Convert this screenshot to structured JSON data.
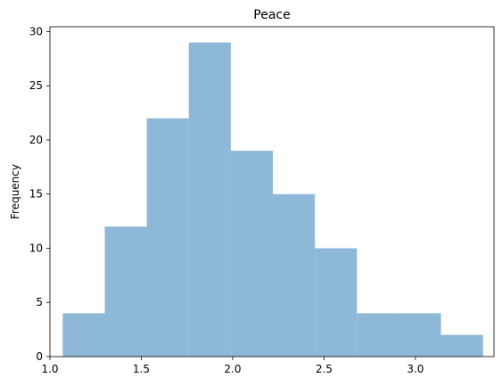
{
  "chart_data": {
    "type": "bar",
    "title": "Peace",
    "xlabel": "",
    "ylabel": "Frequency",
    "bins": [
      {
        "x0": 1.07,
        "x1": 1.3,
        "count": 4
      },
      {
        "x0": 1.3,
        "x1": 1.53,
        "count": 12
      },
      {
        "x0": 1.53,
        "x1": 1.76,
        "count": 22
      },
      {
        "x0": 1.76,
        "x1": 1.99,
        "count": 29
      },
      {
        "x0": 1.99,
        "x1": 2.22,
        "count": 19
      },
      {
        "x0": 2.22,
        "x1": 2.45,
        "count": 15
      },
      {
        "x0": 2.45,
        "x1": 2.68,
        "count": 10
      },
      {
        "x0": 2.68,
        "x1": 2.91,
        "count": 4
      },
      {
        "x0": 2.91,
        "x1": 3.14,
        "count": 4
      },
      {
        "x0": 3.14,
        "x1": 3.37,
        "count": 2
      }
    ],
    "xlim": [
      1.0,
      3.43
    ],
    "ylim": [
      0,
      30.45
    ],
    "xticks": [
      1.0,
      1.5,
      2.0,
      2.5,
      3.0
    ],
    "xtick_labels": [
      "1.0",
      "1.5",
      "2.0",
      "2.5",
      "3.0"
    ],
    "yticks": [
      0,
      5,
      10,
      15,
      20,
      25,
      30
    ],
    "ytick_labels": [
      "0",
      "5",
      "10",
      "15",
      "20",
      "25",
      "30"
    ],
    "bar_color": "#8db8d8",
    "grid": false
  }
}
